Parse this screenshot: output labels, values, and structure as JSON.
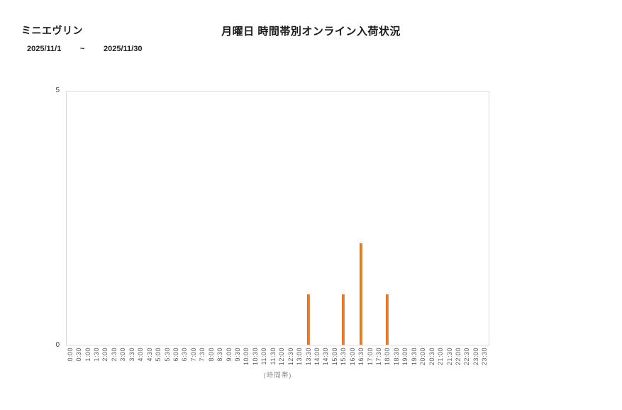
{
  "header": {
    "product_name": "ミニエヴリン",
    "title": "月曜日 時間帯別オンライン入荷状況",
    "date_from": "2025/11/1",
    "date_separator": "~",
    "date_to": "2025/11/30"
  },
  "chart_data": {
    "type": "bar",
    "title": "月曜日 時間帯別オンライン入荷状況",
    "xlabel": "(時間帯)",
    "ylabel": "",
    "ylim": [
      0,
      5
    ],
    "y_ticks": [
      0,
      5
    ],
    "grid": false,
    "legend": false,
    "bar_color": "#ED7D31",
    "axis_border_color": "#D9D9D9",
    "categories": [
      "0:00",
      "0:30",
      "1:00",
      "1:30",
      "2:00",
      "2:30",
      "3:00",
      "3:30",
      "4:00",
      "4:30",
      "5:00",
      "5:30",
      "6:00",
      "6:30",
      "7:00",
      "7:30",
      "8:00",
      "8:30",
      "9:00",
      "9:30",
      "10:00",
      "10:30",
      "11:00",
      "11:30",
      "12:00",
      "12:30",
      "13:00",
      "13:30",
      "14:00",
      "14:30",
      "15:00",
      "15:30",
      "16:00",
      "16:30",
      "17:00",
      "17:30",
      "18:00",
      "18:30",
      "19:00",
      "19:30",
      "20:00",
      "20:30",
      "21:00",
      "21:30",
      "22:00",
      "22:30",
      "23:00",
      "23:30"
    ],
    "values": [
      0,
      0,
      0,
      0,
      0,
      0,
      0,
      0,
      0,
      0,
      0,
      0,
      0,
      0,
      0,
      0,
      0,
      0,
      0,
      0,
      0,
      0,
      0,
      0,
      0,
      0,
      0,
      1,
      0,
      0,
      0,
      1,
      0,
      2,
      0,
      0,
      1,
      0,
      0,
      0,
      0,
      0,
      0,
      0,
      0,
      0,
      0,
      0
    ],
    "nonzero_points": [
      {
        "time": "13:30",
        "value": 1
      },
      {
        "time": "15:30",
        "value": 1
      },
      {
        "time": "16:30",
        "value": 2
      },
      {
        "time": "18:00",
        "value": 1
      }
    ]
  }
}
